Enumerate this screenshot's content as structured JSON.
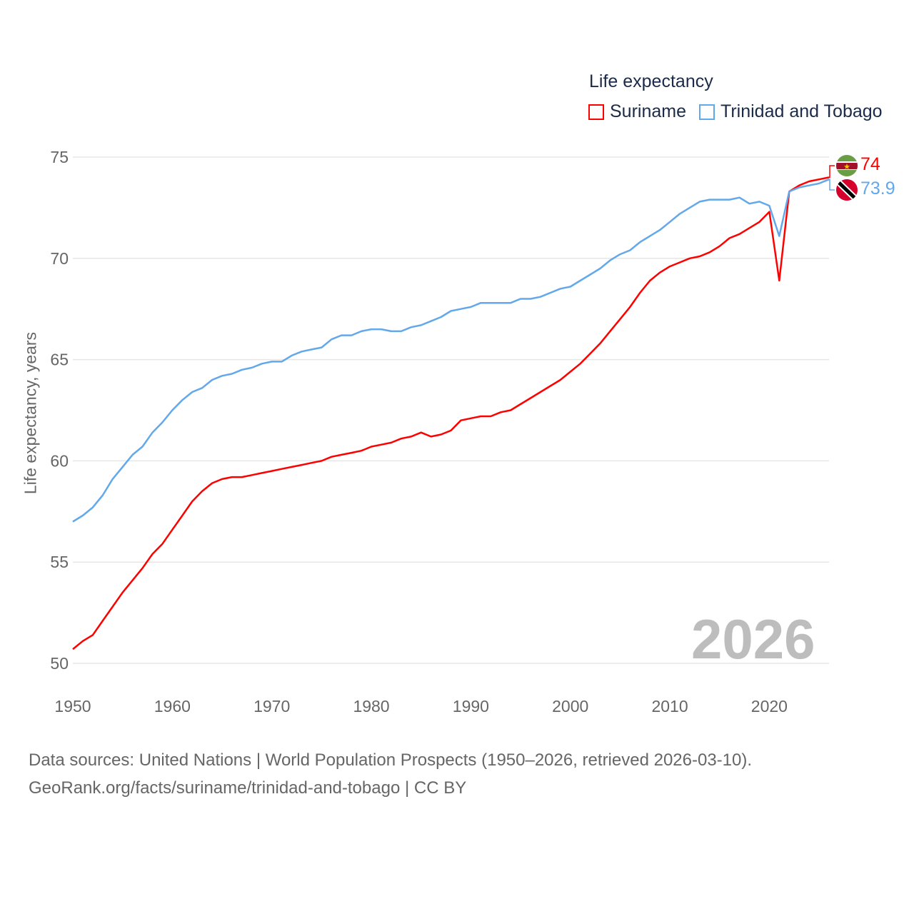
{
  "legend": {
    "title": "Life expectancy",
    "items": [
      {
        "label": "Suriname",
        "color": "#ff0000"
      },
      {
        "label": "Trinidad and Tobago",
        "color": "#62a8ea"
      }
    ]
  },
  "year_watermark": "2026",
  "end_labels": {
    "suriname": "74",
    "trinidad": "73.9"
  },
  "footer": {
    "line1": "Data sources: United Nations | World Population Prospects (1950–2026, retrieved 2026-03-10).",
    "line2": "GeoRank.org/facts/suriname/trinidad-and-tobago | CC BY"
  },
  "chart_data": {
    "type": "line",
    "title": "Life expectancy",
    "xlabel": "",
    "ylabel": "Life expectancy, years",
    "xlim": [
      1950,
      2026
    ],
    "ylim": [
      50,
      75
    ],
    "xticks": [
      1950,
      1960,
      1970,
      1980,
      1990,
      2000,
      2010,
      2020
    ],
    "yticks": [
      50,
      55,
      60,
      65,
      70,
      75
    ],
    "grid": true,
    "legend_position": "top-right",
    "x_start": 1950,
    "series": [
      {
        "name": "Suriname",
        "color": "#ff0000",
        "values": [
          50.7,
          51.1,
          51.4,
          52.1,
          52.8,
          53.5,
          54.1,
          54.7,
          55.4,
          55.9,
          56.6,
          57.3,
          58.0,
          58.5,
          58.9,
          59.1,
          59.2,
          59.2,
          59.3,
          59.4,
          59.5,
          59.6,
          59.7,
          59.8,
          59.9,
          60.0,
          60.2,
          60.3,
          60.4,
          60.5,
          60.7,
          60.8,
          60.9,
          61.1,
          61.2,
          61.4,
          61.2,
          61.3,
          61.5,
          62.0,
          62.1,
          62.2,
          62.2,
          62.4,
          62.5,
          62.8,
          63.1,
          63.4,
          63.7,
          64.0,
          64.4,
          64.8,
          65.3,
          65.8,
          66.4,
          67.0,
          67.6,
          68.3,
          68.9,
          69.3,
          69.6,
          69.8,
          70.0,
          70.1,
          70.3,
          70.6,
          71.0,
          71.2,
          71.5,
          71.8,
          72.3,
          68.9,
          73.3,
          73.6,
          73.8,
          73.9,
          74.0
        ]
      },
      {
        "name": "Trinidad and Tobago",
        "color": "#62a8ea",
        "values": [
          57.0,
          57.3,
          57.7,
          58.3,
          59.1,
          59.7,
          60.3,
          60.7,
          61.4,
          61.9,
          62.5,
          63.0,
          63.4,
          63.6,
          64.0,
          64.2,
          64.3,
          64.5,
          64.6,
          64.8,
          64.9,
          64.9,
          65.2,
          65.4,
          65.5,
          65.6,
          66.0,
          66.2,
          66.2,
          66.4,
          66.5,
          66.5,
          66.4,
          66.4,
          66.6,
          66.7,
          66.9,
          67.1,
          67.4,
          67.5,
          67.6,
          67.8,
          67.8,
          67.8,
          67.8,
          68.0,
          68.0,
          68.1,
          68.3,
          68.5,
          68.6,
          68.9,
          69.2,
          69.5,
          69.9,
          70.2,
          70.4,
          70.8,
          71.1,
          71.4,
          71.8,
          72.2,
          72.5,
          72.8,
          72.9,
          72.9,
          72.9,
          73.0,
          72.7,
          72.8,
          72.6,
          71.1,
          73.3,
          73.5,
          73.6,
          73.7,
          73.9
        ]
      }
    ]
  }
}
